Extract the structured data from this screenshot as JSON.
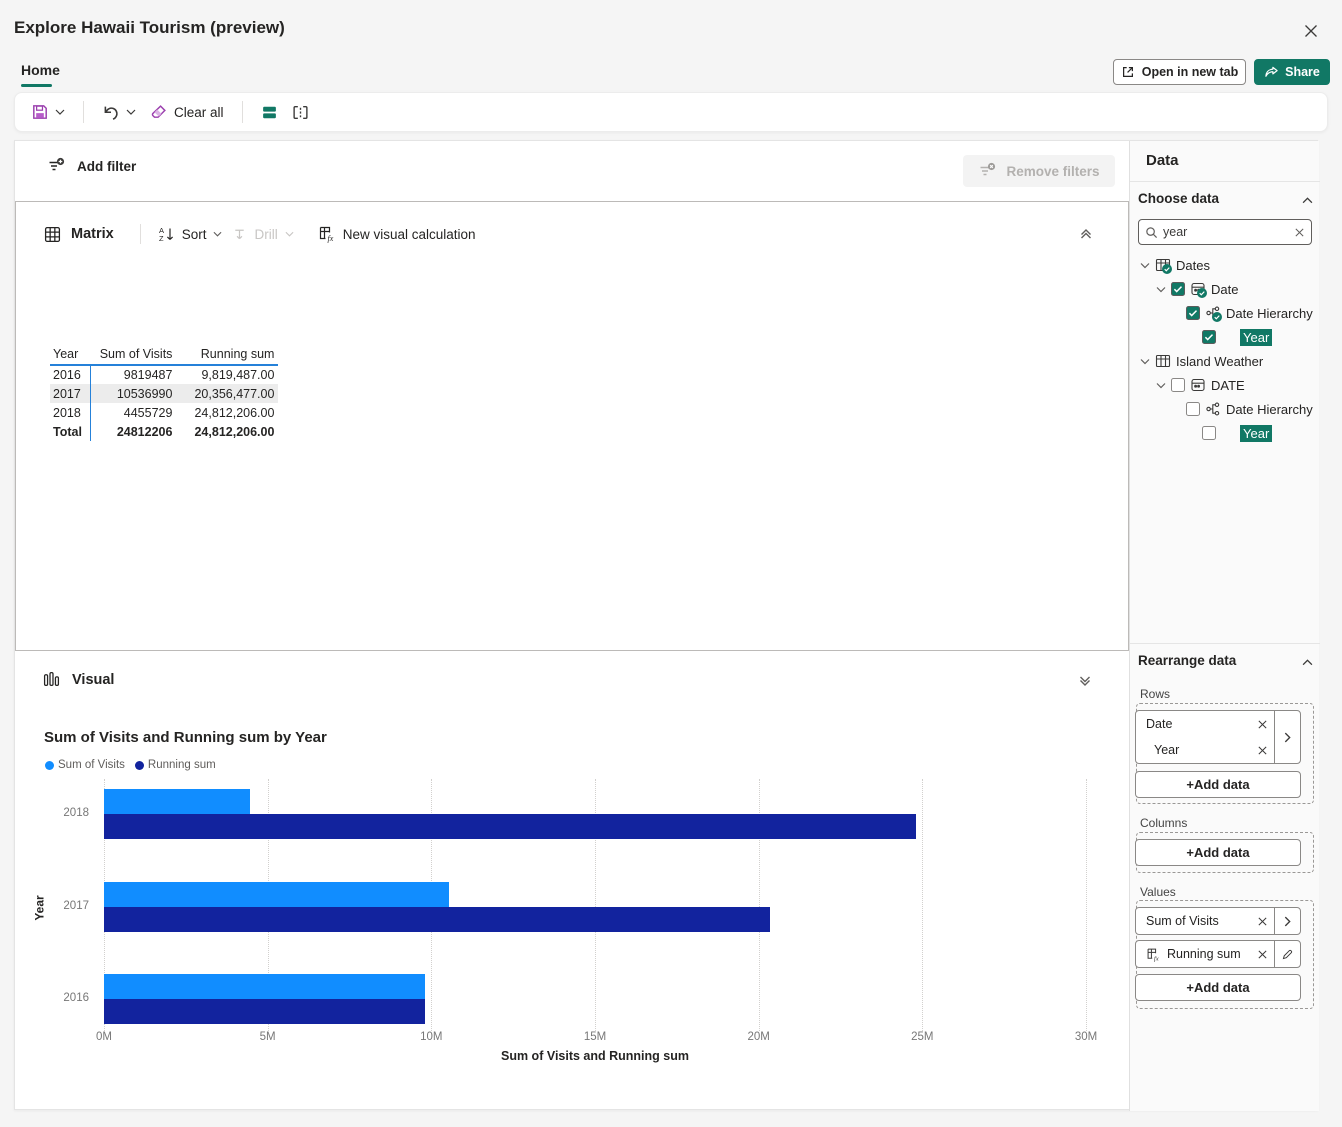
{
  "window": {
    "title": "Explore Hawaii Tourism (preview)",
    "tab": "Home"
  },
  "actions": {
    "open_in_new_tab": "Open in new tab",
    "share": "Share"
  },
  "toolbar": {
    "clear_all": "Clear all"
  },
  "filter_bar": {
    "add_filter": "Add filter",
    "remove_filters": "Remove filters"
  },
  "matrix_panel": {
    "type_label": "Matrix",
    "sort_label": "Sort",
    "drill_label": "Drill",
    "new_visual_calculation_label": "New visual calculation",
    "table": {
      "headers": [
        "Year",
        "Sum of Visits",
        "Running sum"
      ],
      "rows": [
        [
          "2016",
          "9819487",
          "9,819,487.00"
        ],
        [
          "2017",
          "10536990",
          "20,356,477.00"
        ],
        [
          "2018",
          "4455729",
          "24,812,206.00"
        ],
        [
          "Total",
          "24812206",
          "24,812,206.00"
        ]
      ],
      "banded_row_index": 1,
      "total_row_index": 3,
      "header_line_color": "#2581d9"
    }
  },
  "visual_panel": {
    "label": "Visual"
  },
  "chart_data": {
    "type": "bar",
    "orientation": "horizontal",
    "title": "Sum of Visits and Running sum by Year",
    "categories": [
      "2018",
      "2017",
      "2016"
    ],
    "series": [
      {
        "name": "Sum of Visits",
        "color": "#118DFF",
        "values": [
          4455729,
          10536990,
          9819487
        ]
      },
      {
        "name": "Running sum",
        "color": "#12239E",
        "values": [
          24812206,
          20356477,
          9819487
        ]
      }
    ],
    "xlabel": "Sum of Visits and Running sum",
    "ylabel": "Year",
    "xlim": [
      0,
      30000000
    ],
    "x_tick_labels": [
      "0M",
      "5M",
      "10M",
      "15M",
      "20M",
      "25M",
      "30M"
    ],
    "grid": "vertical-dotted",
    "legend_position": "top-left"
  },
  "data_pane": {
    "title": "Data",
    "choose_data": {
      "label": "Choose data",
      "search": {
        "value": "year"
      },
      "tree": [
        {
          "label": "Dates",
          "level": 0,
          "chevron": true,
          "icon": "table",
          "badge": true,
          "checkbox": null,
          "highlight": false
        },
        {
          "label": "Date",
          "level": 1,
          "chevron": true,
          "icon": "date",
          "badge": true,
          "checkbox": "checked",
          "highlight": false
        },
        {
          "label": "Date Hierarchy",
          "level": 2,
          "chevron": false,
          "icon": "hierarchy",
          "badge": true,
          "checkbox": "checked",
          "highlight": false
        },
        {
          "label": "Year",
          "level": 3,
          "chevron": false,
          "icon": null,
          "badge": false,
          "checkbox": "checked",
          "highlight": true
        },
        {
          "label": "Island Weather",
          "level": 0,
          "chevron": true,
          "icon": "table",
          "badge": false,
          "checkbox": null,
          "highlight": false
        },
        {
          "label": "DATE",
          "level": 1,
          "chevron": true,
          "icon": "date",
          "badge": false,
          "checkbox": "unchecked",
          "highlight": false
        },
        {
          "label": "Date Hierarchy",
          "level": 2,
          "chevron": false,
          "icon": "hierarchy",
          "badge": false,
          "checkbox": "unchecked",
          "highlight": false
        },
        {
          "label": "Year",
          "level": 3,
          "chevron": false,
          "icon": null,
          "badge": false,
          "checkbox": "unchecked",
          "highlight": true
        }
      ]
    },
    "rearrange": {
      "label": "Rearrange data",
      "rows_label": "Rows",
      "columns_label": "Columns",
      "values_label": "Values",
      "add_data_label": "+Add data",
      "rows_fields": [
        "Date",
        "Year"
      ],
      "values_fields": [
        "Sum of Visits",
        "Running sum"
      ]
    }
  },
  "colors": {
    "accent_teal": "#117865",
    "series_blue": "#118DFF",
    "series_navy": "#12239E",
    "purple": "#9b3fae"
  }
}
